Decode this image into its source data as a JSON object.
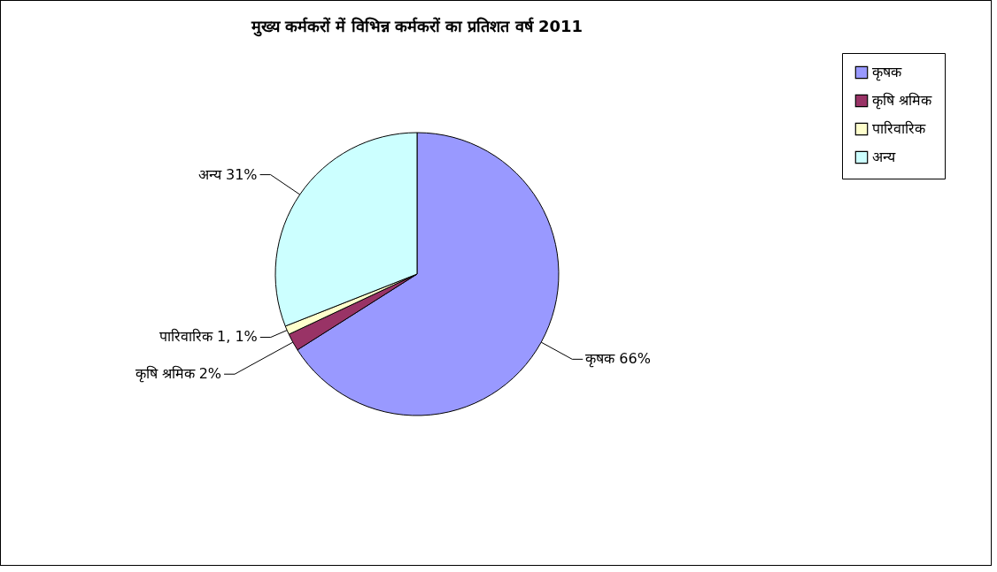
{
  "chart_data": {
    "type": "pie",
    "title": "मुख्य कर्मकरों में विभिन्न कर्मकरों का प्रतिशत वर्ष 2011",
    "categories": [
      "कृषक",
      "कृषि श्रमिक",
      "पारिवारिक",
      "अन्य"
    ],
    "values": [
      66,
      2,
      1,
      31
    ],
    "colors": [
      "#9999ff",
      "#993366",
      "#ffffcc",
      "#ccffff"
    ],
    "value_labels": [
      "कृषक 66%",
      "कृषि श्रमिक 2%",
      "पारिवारिक 1, 1%",
      "अन्य 31%"
    ],
    "legend": "right"
  }
}
